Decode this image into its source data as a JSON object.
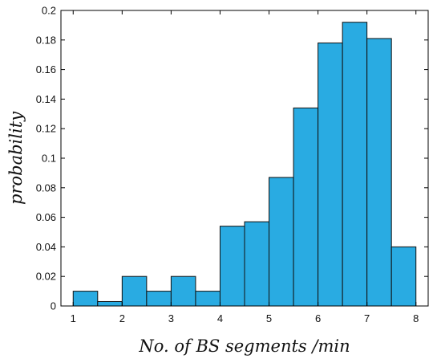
{
  "chart_data": {
    "type": "bar",
    "title": "",
    "xlabel": "No. of BS segments /min",
    "ylabel": "probability",
    "xlim": [
      0.75,
      8.25
    ],
    "ylim": [
      0,
      0.2
    ],
    "x_ticks": [
      1,
      2,
      3,
      4,
      5,
      6,
      7,
      8
    ],
    "y_ticks": [
      0,
      0.02,
      0.04,
      0.06,
      0.08,
      0.1,
      0.12,
      0.14,
      0.16,
      0.18,
      0.2
    ],
    "grid": false,
    "legend": "none",
    "bins": [
      {
        "x0": 1.0,
        "x1": 1.5,
        "value": 0.01
      },
      {
        "x0": 1.5,
        "x1": 2.0,
        "value": 0.003
      },
      {
        "x0": 2.0,
        "x1": 2.5,
        "value": 0.02
      },
      {
        "x0": 2.5,
        "x1": 3.0,
        "value": 0.01
      },
      {
        "x0": 3.0,
        "x1": 3.5,
        "value": 0.02
      },
      {
        "x0": 3.5,
        "x1": 4.0,
        "value": 0.01
      },
      {
        "x0": 4.0,
        "x1": 4.5,
        "value": 0.054
      },
      {
        "x0": 4.5,
        "x1": 5.0,
        "value": 0.057
      },
      {
        "x0": 5.0,
        "x1": 5.5,
        "value": 0.087
      },
      {
        "x0": 5.5,
        "x1": 6.0,
        "value": 0.134
      },
      {
        "x0": 6.0,
        "x1": 6.5,
        "value": 0.178
      },
      {
        "x0": 6.5,
        "x1": 7.0,
        "value": 0.192
      },
      {
        "x0": 7.0,
        "x1": 7.5,
        "value": 0.181
      },
      {
        "x0": 7.5,
        "x1": 8.0,
        "value": 0.04
      }
    ],
    "colors": {
      "bar_fill": "#29abe2",
      "bar_stroke": "#111111",
      "axis": "#000000"
    }
  }
}
